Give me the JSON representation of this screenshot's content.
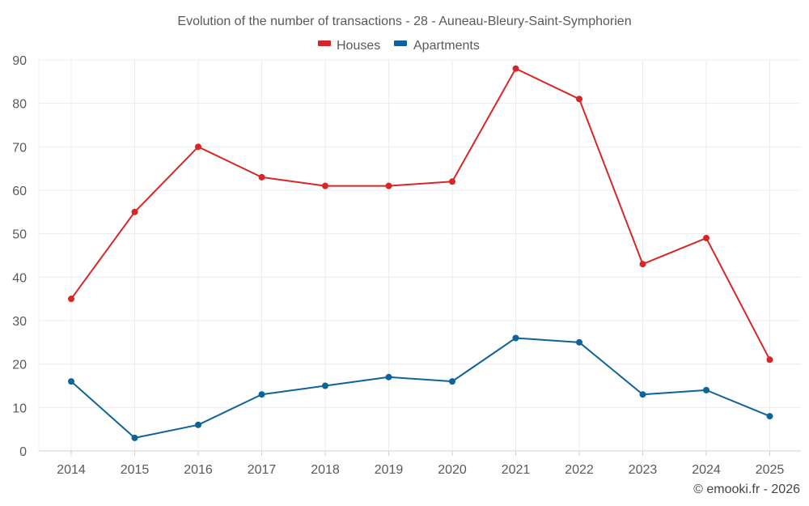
{
  "chart_data": {
    "type": "line",
    "title": "Evolution of the number of transactions - 28 - Auneau-Bleury-Saint-Symphorien",
    "categories": [
      "2014",
      "2015",
      "2016",
      "2017",
      "2018",
      "2019",
      "2020",
      "2021",
      "2022",
      "2023",
      "2024",
      "2025"
    ],
    "series": [
      {
        "name": "Houses",
        "color": "#d62728",
        "values": [
          35,
          55,
          70,
          63,
          61,
          61,
          62,
          88,
          81,
          43,
          49,
          21
        ]
      },
      {
        "name": "Apartments",
        "color": "#0e6398",
        "values": [
          16,
          3,
          6,
          13,
          15,
          17,
          16,
          26,
          25,
          13,
          14,
          8
        ]
      }
    ],
    "ylim": [
      0,
      90
    ],
    "yticks": [
      0,
      10,
      20,
      30,
      40,
      50,
      60,
      70,
      80,
      90
    ],
    "xlabel": "",
    "ylabel": "",
    "grid": true,
    "legend_position": "top-center"
  },
  "credit": "© emooki.fr - 2026"
}
